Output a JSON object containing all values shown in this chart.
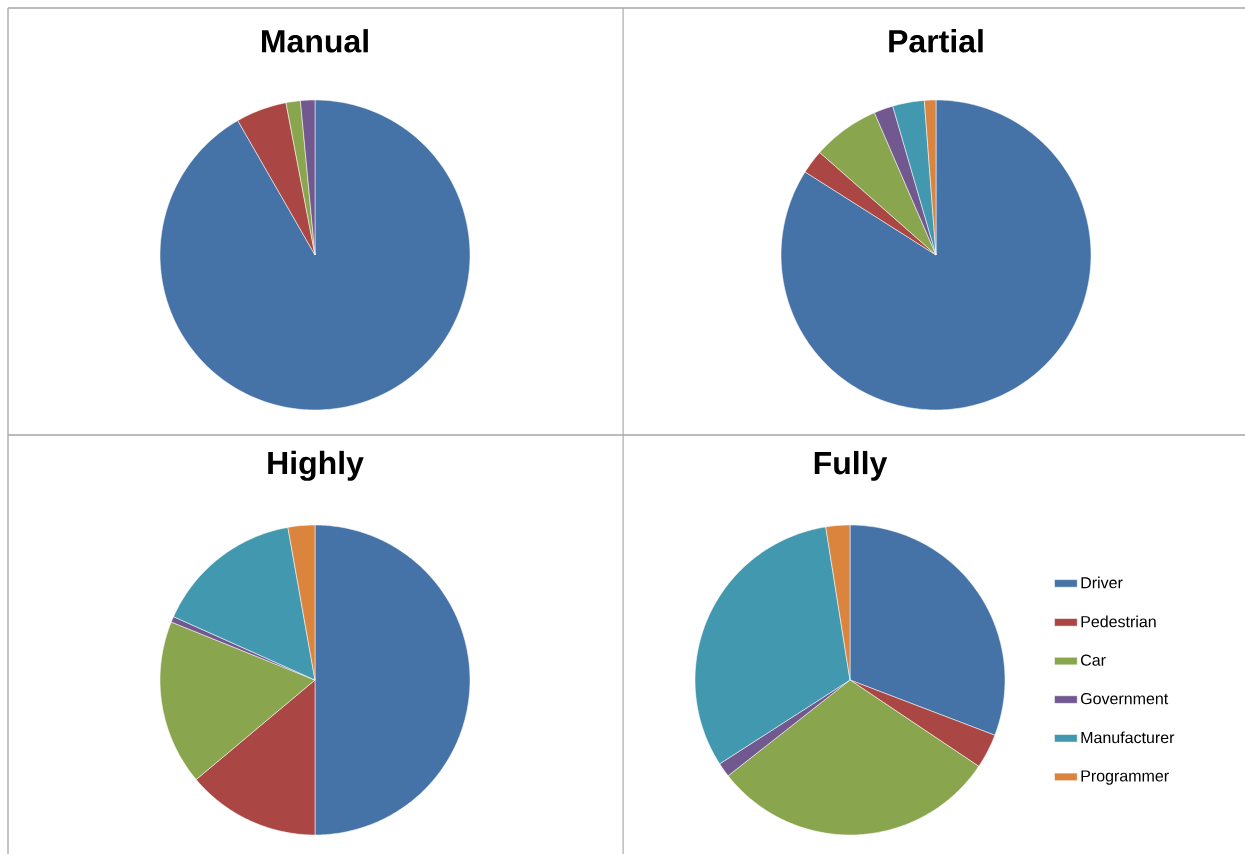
{
  "chart_data": [
    {
      "type": "pie",
      "title": "Manual",
      "categories": [
        null,
        null,
        null,
        null
      ],
      "values": [
        91.7,
        5.3,
        1.5,
        1.5
      ],
      "colors": [
        "#4572a7",
        "#aa4643",
        "#89a54e",
        "#71588f"
      ],
      "legend": false
    },
    {
      "type": "pie",
      "title": "Partial",
      "categories": [
        null,
        null,
        null,
        null,
        null,
        null
      ],
      "values": [
        84,
        2.5,
        7,
        2,
        3.3,
        1.2
      ],
      "colors": [
        "#4572a7",
        "#aa4643",
        "#89a54e",
        "#71588f",
        "#4198af",
        "#db843d"
      ],
      "legend": false
    },
    {
      "type": "pie",
      "title": "Highly",
      "categories": [
        null,
        null,
        null,
        null,
        null,
        null
      ],
      "values": [
        50,
        13.9,
        17.2,
        0.6,
        15.5,
        2.8
      ],
      "colors": [
        "#4572a7",
        "#aa4643",
        "#89a54e",
        "#71588f",
        "#4198af",
        "#db843d"
      ],
      "legend": false
    },
    {
      "type": "pie",
      "title": "Fully",
      "categories": [
        "Driver",
        "Pedestrian",
        "Car",
        "Government",
        "Manufacturer",
        "Programmer"
      ],
      "values": [
        30.8,
        3.6,
        30,
        1.5,
        31.6,
        2.5
      ],
      "colors": [
        "#4572a7",
        "#aa4643",
        "#89a54e",
        "#71588f",
        "#4198af",
        "#db843d"
      ],
      "legend": "right"
    }
  ]
}
